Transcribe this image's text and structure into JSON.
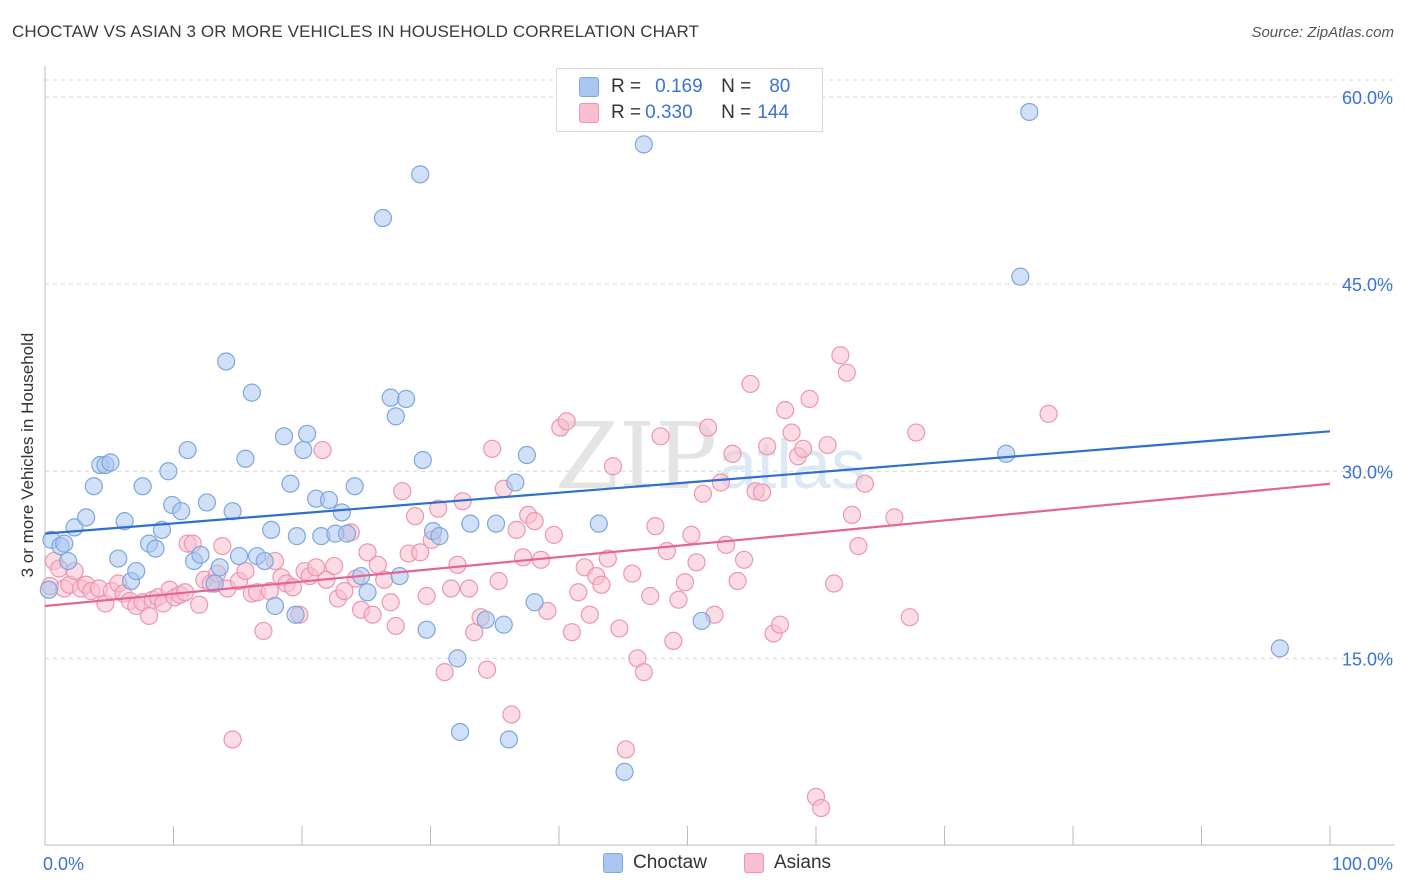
{
  "header": {
    "title": "CHOCTAW VS ASIAN 3 OR MORE VEHICLES IN HOUSEHOLD CORRELATION CHART",
    "source": "Source: ZipAtlas.com"
  },
  "legend": {
    "rows": [
      {
        "r_label": "R = ",
        "r_value": "0.169",
        "n_label": "N = ",
        "n_value": "80"
      },
      {
        "r_label": "R = ",
        "r_value": "0.330",
        "n_label": "N = ",
        "n_value": "144"
      }
    ]
  },
  "bottom_legend": {
    "series1": "Choctaw",
    "series2": "Asians"
  },
  "watermark": {
    "zip": "ZIP",
    "atlas": "atlas"
  },
  "colors": {
    "choctaw_fill": "#a9c6ef",
    "choctaw_stroke": "#7fa6de",
    "choctaw_line": "#2f6fd0",
    "asians_fill": "#f8bfd0",
    "asians_stroke": "#ee95b0",
    "asians_line": "#e56592",
    "axis_text": "#3b72d6",
    "grid": "#d6d6d6"
  },
  "chart_data": {
    "type": "scatter",
    "title": "CHOCTAW VS ASIAN 3 OR MORE VEHICLES IN HOUSEHOLD CORRELATION CHART",
    "xlabel": "",
    "ylabel": "3 or more Vehicles in Household",
    "xlim": [
      0,
      100
    ],
    "ylim": [
      0,
      60
    ],
    "x_tick_labels": [
      "0.0%",
      "100.0%"
    ],
    "y_ticks": [
      15,
      30,
      45,
      60
    ],
    "y_tick_labels": [
      "15.0%",
      "30.0%",
      "45.0%",
      "60.0%"
    ],
    "grid": true,
    "legend_position": "top-center",
    "series": [
      {
        "name": "Choctaw",
        "R": 0.169,
        "N": 80,
        "trend": {
          "x": [
            0,
            100
          ],
          "y": [
            25.0,
            33.2
          ]
        },
        "points": [
          [
            0.3,
            20.5
          ],
          [
            0.5,
            24.5
          ],
          [
            1.2,
            24.0
          ],
          [
            1.5,
            24.2
          ],
          [
            1.8,
            22.8
          ],
          [
            2.3,
            25.5
          ],
          [
            3.2,
            26.3
          ],
          [
            3.8,
            28.8
          ],
          [
            4.3,
            30.5
          ],
          [
            4.7,
            30.5
          ],
          [
            5.1,
            30.7
          ],
          [
            5.7,
            23.0
          ],
          [
            6.2,
            26.0
          ],
          [
            6.7,
            21.2
          ],
          [
            7.1,
            22.0
          ],
          [
            7.6,
            28.8
          ],
          [
            8.1,
            24.2
          ],
          [
            8.6,
            23.8
          ],
          [
            9.1,
            25.3
          ],
          [
            9.6,
            30.0
          ],
          [
            9.9,
            27.3
          ],
          [
            10.6,
            26.8
          ],
          [
            11.1,
            31.7
          ],
          [
            11.6,
            22.8
          ],
          [
            12.1,
            23.3
          ],
          [
            12.6,
            27.5
          ],
          [
            13.2,
            21.0
          ],
          [
            13.6,
            22.3
          ],
          [
            14.1,
            38.8
          ],
          [
            14.6,
            26.8
          ],
          [
            15.1,
            23.2
          ],
          [
            15.6,
            31.0
          ],
          [
            16.1,
            36.3
          ],
          [
            16.5,
            23.2
          ],
          [
            17.1,
            22.8
          ],
          [
            17.6,
            25.3
          ],
          [
            17.9,
            19.2
          ],
          [
            18.6,
            32.8
          ],
          [
            19.1,
            29.0
          ],
          [
            19.6,
            24.8
          ],
          [
            20.1,
            31.7
          ],
          [
            20.4,
            33.0
          ],
          [
            21.1,
            27.8
          ],
          [
            21.5,
            24.8
          ],
          [
            22.1,
            27.7
          ],
          [
            22.6,
            25.0
          ],
          [
            23.1,
            26.7
          ],
          [
            23.5,
            25.0
          ],
          [
            24.1,
            28.8
          ],
          [
            24.6,
            21.6
          ],
          [
            25.1,
            20.3
          ],
          [
            26.3,
            50.3
          ],
          [
            26.9,
            35.9
          ],
          [
            27.3,
            34.4
          ],
          [
            27.6,
            21.6
          ],
          [
            28.1,
            35.8
          ],
          [
            29.2,
            53.8
          ],
          [
            29.4,
            30.9
          ],
          [
            29.7,
            17.3
          ],
          [
            30.2,
            25.2
          ],
          [
            30.7,
            24.8
          ],
          [
            32.1,
            15.0
          ],
          [
            32.3,
            9.1
          ],
          [
            33.1,
            25.8
          ],
          [
            34.3,
            18.1
          ],
          [
            35.1,
            25.8
          ],
          [
            35.7,
            17.7
          ],
          [
            36.1,
            8.5
          ],
          [
            36.6,
            29.1
          ],
          [
            37.5,
            31.3
          ],
          [
            38.1,
            19.5
          ],
          [
            43.1,
            25.8
          ],
          [
            45.1,
            5.9
          ],
          [
            46.6,
            56.2
          ],
          [
            51.1,
            18.0
          ],
          [
            75.9,
            45.6
          ],
          [
            76.6,
            58.8
          ],
          [
            96.1,
            15.8
          ],
          [
            74.8,
            31.4
          ],
          [
            19.5,
            18.5
          ]
        ]
      },
      {
        "name": "Asians",
        "R": 0.33,
        "N": 144,
        "trend": {
          "x": [
            0,
            100
          ],
          "y": [
            19.2,
            29.0
          ]
        },
        "points": [
          [
            0.4,
            20.8
          ],
          [
            0.7,
            22.8
          ],
          [
            1.1,
            22.2
          ],
          [
            1.5,
            20.6
          ],
          [
            1.9,
            20.9
          ],
          [
            2.3,
            22.0
          ],
          [
            2.8,
            20.6
          ],
          [
            3.2,
            20.9
          ],
          [
            3.6,
            20.4
          ],
          [
            4.2,
            20.6
          ],
          [
            4.7,
            19.4
          ],
          [
            5.2,
            20.4
          ],
          [
            5.7,
            21.0
          ],
          [
            6.1,
            20.2
          ],
          [
            6.6,
            19.6
          ],
          [
            7.1,
            19.2
          ],
          [
            7.6,
            19.5
          ],
          [
            8.1,
            18.4
          ],
          [
            8.4,
            19.7
          ],
          [
            8.8,
            19.9
          ],
          [
            9.2,
            19.4
          ],
          [
            9.7,
            20.5
          ],
          [
            10.1,
            19.9
          ],
          [
            10.5,
            20.1
          ],
          [
            11.1,
            24.2
          ],
          [
            11.5,
            24.2
          ],
          [
            12.0,
            19.3
          ],
          [
            12.4,
            21.3
          ],
          [
            12.9,
            21.0
          ],
          [
            13.4,
            21.8
          ],
          [
            13.8,
            24.0
          ],
          [
            14.2,
            20.6
          ],
          [
            14.6,
            8.5
          ],
          [
            15.1,
            21.2
          ],
          [
            15.6,
            22.0
          ],
          [
            16.1,
            20.2
          ],
          [
            16.5,
            20.3
          ],
          [
            17.0,
            17.2
          ],
          [
            17.5,
            20.4
          ],
          [
            17.9,
            22.8
          ],
          [
            18.4,
            21.5
          ],
          [
            18.8,
            21.0
          ],
          [
            19.3,
            20.7
          ],
          [
            19.8,
            18.5
          ],
          [
            20.2,
            22.0
          ],
          [
            20.6,
            21.6
          ],
          [
            21.1,
            22.3
          ],
          [
            21.6,
            31.7
          ],
          [
            21.9,
            21.3
          ],
          [
            22.5,
            22.4
          ],
          [
            22.8,
            19.8
          ],
          [
            23.3,
            20.4
          ],
          [
            23.8,
            25.1
          ],
          [
            24.2,
            21.4
          ],
          [
            24.6,
            18.9
          ],
          [
            25.1,
            23.5
          ],
          [
            25.5,
            18.5
          ],
          [
            25.9,
            22.5
          ],
          [
            26.4,
            21.3
          ],
          [
            26.9,
            19.5
          ],
          [
            27.3,
            17.6
          ],
          [
            27.8,
            28.4
          ],
          [
            28.3,
            23.4
          ],
          [
            28.8,
            26.4
          ],
          [
            29.2,
            23.5
          ],
          [
            29.7,
            20.0
          ],
          [
            30.1,
            24.5
          ],
          [
            30.6,
            27.0
          ],
          [
            31.1,
            13.9
          ],
          [
            31.6,
            20.6
          ],
          [
            32.1,
            22.5
          ],
          [
            32.5,
            27.6
          ],
          [
            33.0,
            20.6
          ],
          [
            33.4,
            17.1
          ],
          [
            33.9,
            18.3
          ],
          [
            34.4,
            14.1
          ],
          [
            34.8,
            31.8
          ],
          [
            35.3,
            21.2
          ],
          [
            35.7,
            28.6
          ],
          [
            36.3,
            10.5
          ],
          [
            36.7,
            25.3
          ],
          [
            37.2,
            23.1
          ],
          [
            37.6,
            26.5
          ],
          [
            38.1,
            26.0
          ],
          [
            38.6,
            22.9
          ],
          [
            39.1,
            18.8
          ],
          [
            39.6,
            24.9
          ],
          [
            40.1,
            33.5
          ],
          [
            40.6,
            34.0
          ],
          [
            41.0,
            17.1
          ],
          [
            41.5,
            20.3
          ],
          [
            42.0,
            22.3
          ],
          [
            42.4,
            18.5
          ],
          [
            42.9,
            21.6
          ],
          [
            43.3,
            20.9
          ],
          [
            43.8,
            23.0
          ],
          [
            44.2,
            30.4
          ],
          [
            44.7,
            17.4
          ],
          [
            45.2,
            7.7
          ],
          [
            45.7,
            21.8
          ],
          [
            46.1,
            15.0
          ],
          [
            46.6,
            13.9
          ],
          [
            47.1,
            20.0
          ],
          [
            47.5,
            25.6
          ],
          [
            47.9,
            32.8
          ],
          [
            48.4,
            23.6
          ],
          [
            48.9,
            16.4
          ],
          [
            49.3,
            19.7
          ],
          [
            49.8,
            21.1
          ],
          [
            50.3,
            24.9
          ],
          [
            50.7,
            22.7
          ],
          [
            51.2,
            28.2
          ],
          [
            51.6,
            33.5
          ],
          [
            52.1,
            18.5
          ],
          [
            52.6,
            29.1
          ],
          [
            53.0,
            24.1
          ],
          [
            53.5,
            31.4
          ],
          [
            53.9,
            21.2
          ],
          [
            54.4,
            22.9
          ],
          [
            54.9,
            37.0
          ],
          [
            55.3,
            28.4
          ],
          [
            55.8,
            28.3
          ],
          [
            56.2,
            32.0
          ],
          [
            56.7,
            17.0
          ],
          [
            57.2,
            17.7
          ],
          [
            57.6,
            34.9
          ],
          [
            58.1,
            33.1
          ],
          [
            58.6,
            31.2
          ],
          [
            59.0,
            31.8
          ],
          [
            59.5,
            35.8
          ],
          [
            60.0,
            3.9
          ],
          [
            60.4,
            3.0
          ],
          [
            60.9,
            32.1
          ],
          [
            61.4,
            21.0
          ],
          [
            61.9,
            39.3
          ],
          [
            62.4,
            37.9
          ],
          [
            62.8,
            26.5
          ],
          [
            63.3,
            24.0
          ],
          [
            63.8,
            29.0
          ],
          [
            66.1,
            26.3
          ],
          [
            67.3,
            18.3
          ],
          [
            67.8,
            33.1
          ],
          [
            78.1,
            34.6
          ],
          [
            10.9,
            20.3
          ]
        ]
      }
    ]
  }
}
